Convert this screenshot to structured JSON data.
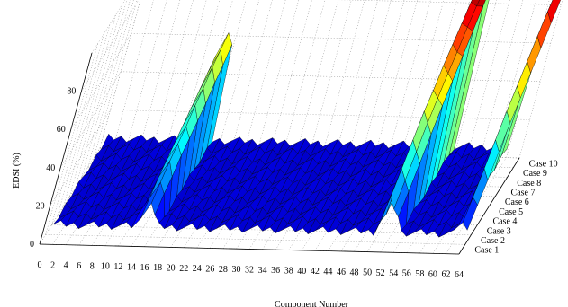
{
  "chart_data": {
    "type": "surface3d",
    "zlabel": "EDSI (%)",
    "xlabel": "Component Number",
    "x_ticks": [
      0,
      2,
      4,
      6,
      8,
      10,
      12,
      14,
      16,
      18,
      20,
      22,
      24,
      26,
      28,
      30,
      32,
      34,
      36,
      38,
      40,
      42,
      44,
      46,
      48,
      50,
      52,
      54,
      56,
      58,
      60,
      62,
      64
    ],
    "z_ticks": [
      0,
      20,
      40,
      60,
      80
    ],
    "y_ticks": [
      "Case 1",
      "Case 2",
      "Case 3",
      "Case 4",
      "Case 5",
      "Case 6",
      "Case 7",
      "Case 8",
      "Case 9",
      "Case 10"
    ],
    "xlim": [
      0,
      64
    ],
    "zlim": [
      0,
      100
    ],
    "grid": true,
    "colormap": "jet",
    "components": [
      1,
      2,
      3,
      4,
      5,
      6,
      7,
      8,
      9,
      10,
      11,
      12,
      13,
      14,
      15,
      16,
      17,
      18,
      19,
      20,
      21,
      22,
      23,
      24,
      25,
      26,
      27,
      28,
      29,
      30,
      31,
      32,
      33,
      34,
      35,
      36,
      37,
      38,
      39,
      40,
      41,
      42,
      43,
      44,
      45,
      46,
      47,
      48,
      49,
      50,
      51,
      52,
      53,
      54,
      55,
      56,
      57,
      58,
      59,
      60,
      61,
      62,
      63,
      64
    ],
    "peaks": [
      {
        "component": 14,
        "values": [
          12,
          18,
          24,
          28,
          32,
          36,
          40,
          44,
          48,
          52
        ]
      },
      {
        "component": 15,
        "values": [
          20,
          26,
          32,
          36,
          40,
          46,
          50,
          56,
          60,
          64
        ]
      },
      {
        "component": 16,
        "values": [
          14,
          20,
          24,
          30,
          34,
          38,
          42,
          48,
          52,
          58
        ]
      },
      {
        "component": 51,
        "values": [
          26,
          36,
          46,
          56,
          62,
          70,
          76,
          82,
          88,
          92
        ]
      },
      {
        "component": 52,
        "values": [
          20,
          30,
          40,
          50,
          58,
          66,
          72,
          80,
          86,
          90
        ]
      },
      {
        "component": 53,
        "values": [
          16,
          24,
          34,
          44,
          54,
          62,
          70,
          78,
          86,
          94
        ]
      },
      {
        "component": 63,
        "values": [
          14,
          22,
          32,
          42,
          52,
          60,
          68,
          76,
          84,
          90
        ]
      },
      {
        "component": 64,
        "values": [
          10,
          18,
          26,
          36,
          46,
          54,
          62,
          70,
          78,
          86
        ]
      }
    ],
    "baseline": 8
  }
}
